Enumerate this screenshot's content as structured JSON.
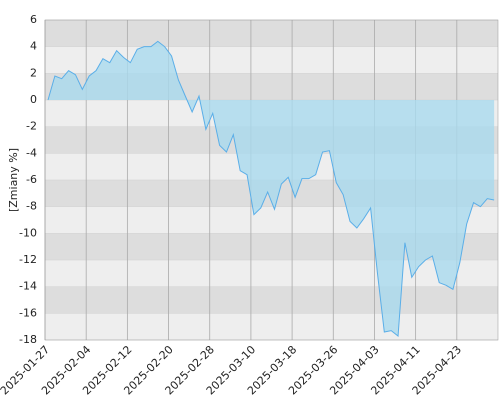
{
  "chart_data": {
    "type": "area",
    "ylabel": "[Zmiany %]",
    "categories": [
      "2025-01-27",
      null,
      null,
      null,
      null,
      null,
      "2025-02-04",
      null,
      null,
      null,
      null,
      null,
      "2025-02-12",
      null,
      null,
      null,
      null,
      null,
      "2025-02-20",
      null,
      null,
      null,
      null,
      null,
      "2025-02-28",
      null,
      null,
      null,
      null,
      null,
      "2025-03-10",
      null,
      null,
      null,
      null,
      null,
      "2025-03-18",
      null,
      null,
      null,
      null,
      null,
      "2025-03-26",
      null,
      null,
      null,
      null,
      null,
      "2025-04-03",
      null,
      null,
      null,
      null,
      null,
      "2025-04-11",
      null,
      null,
      null,
      null,
      null,
      "2025-04-23",
      null,
      null,
      null,
      null,
      null
    ],
    "values": [
      0,
      1.8,
      1.6,
      2.2,
      1.9,
      0.8,
      1.8,
      2.2,
      3.1,
      2.8,
      3.7,
      3.2,
      2.8,
      3.8,
      4.0,
      4.0,
      4.4,
      4.0,
      3.3,
      1.5,
      0.3,
      -0.9,
      0.3,
      -2.2,
      -1.0,
      -3.4,
      -3.9,
      -2.6,
      -5.3,
      -5.6,
      -8.6,
      -8.1,
      -6.9,
      -8.2,
      -6.3,
      -5.8,
      -7.3,
      -5.9,
      -5.9,
      -5.6,
      -3.9,
      -3.8,
      -6.2,
      -7.1,
      -9.1,
      -9.6,
      -8.9,
      -8.1,
      -13.0,
      -17.4,
      -17.3,
      -17.7,
      -10.7,
      -13.3,
      -12.5,
      -12.0,
      -11.7,
      -13.7,
      -13.9,
      -14.2,
      -12.2,
      -9.3,
      -7.7,
      -8.0,
      -7.4,
      -7.5
    ],
    "color": "#5aaee8",
    "fill": "#a9d9ee",
    "ylim": [
      -18,
      6
    ],
    "yticks": [
      -18,
      -16,
      -14,
      -12,
      -10,
      -8,
      -6,
      -4,
      -2,
      0,
      2,
      4,
      6
    ],
    "grid": true
  }
}
